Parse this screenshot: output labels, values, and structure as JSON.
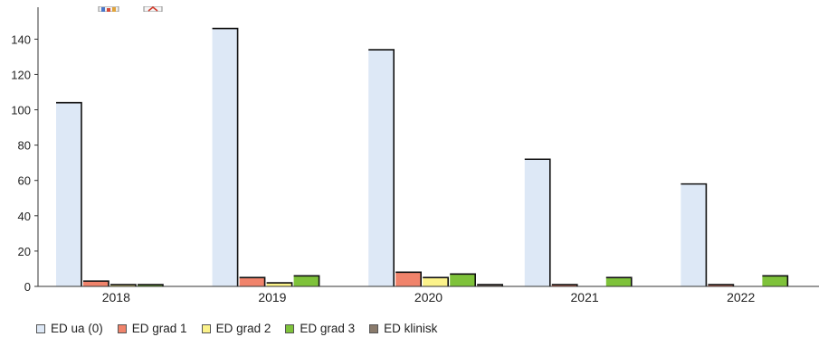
{
  "chart_data": {
    "type": "bar",
    "categories": [
      "2018",
      "2019",
      "2020",
      "2021",
      "2022"
    ],
    "series": [
      {
        "name": "ED ua (0)",
        "color": "#dde8f6",
        "values": [
          104,
          146,
          134,
          72,
          58
        ]
      },
      {
        "name": "ED grad 1",
        "color": "#f0836b",
        "values": [
          3,
          5,
          8,
          1,
          1
        ]
      },
      {
        "name": "ED grad 2",
        "color": "#fbf28a",
        "values": [
          1,
          2,
          5,
          0,
          0
        ]
      },
      {
        "name": "ED grad 3",
        "color": "#7ec23a",
        "values": [
          1,
          6,
          7,
          5,
          6
        ]
      },
      {
        "name": "ED klinisk",
        "color": "#8a7b6c",
        "values": [
          0,
          0,
          1,
          0,
          0
        ]
      }
    ],
    "yticks": [
      0,
      20,
      40,
      60,
      80,
      100,
      120,
      140
    ],
    "ylim": [
      0,
      155
    ],
    "grid": false,
    "legend_position": "bottom"
  },
  "toolbar": {
    "chart_icon": "bar-chart-icon",
    "export_icon": "export-icon"
  }
}
